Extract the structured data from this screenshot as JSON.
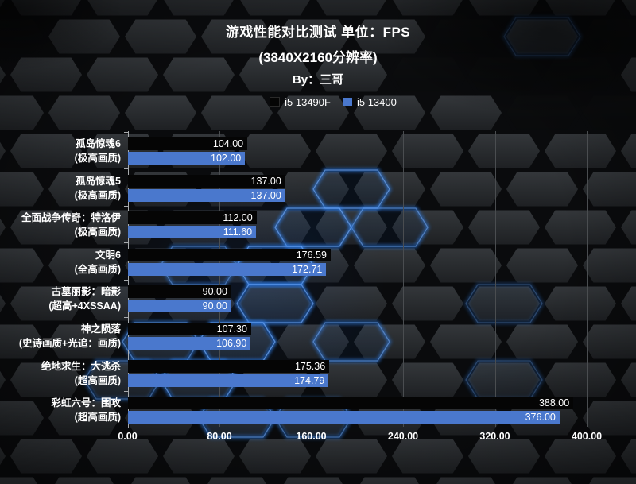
{
  "header": {
    "title": "游戏性能对比测试 单位：FPS",
    "subtitle": "(3840X2160分辨率)",
    "byline": "By：三哥"
  },
  "legend": {
    "items": [
      {
        "label": "i5 13490F",
        "color": "#050505"
      },
      {
        "label": "i5 13400",
        "color": "#4a78cd"
      }
    ]
  },
  "colors": {
    "bar_black": "#050505",
    "bar_blue": "#4a78cd",
    "gridline": "#4a4d50",
    "axis": "#a8abae",
    "text": "#ffffff",
    "glow_blue": "#2f7de4"
  },
  "chart_data": {
    "type": "bar",
    "orientation": "horizontal",
    "title": "游戏性能对比测试 单位：FPS",
    "subtitle": "(3840X2160分辨率)",
    "unit": "FPS",
    "xlim": [
      0,
      400
    ],
    "x_ticks": [
      0,
      80,
      160,
      240,
      320,
      400
    ],
    "grid": true,
    "legend_position": "top",
    "categories": [
      {
        "line1": "孤岛惊魂6",
        "line2": "(极高画质)"
      },
      {
        "line1": "孤岛惊魂5",
        "line2": "(极高画质)"
      },
      {
        "line1": "全面战争传奇：特洛伊",
        "line2": "(极高画质)"
      },
      {
        "line1": "文明6",
        "line2": "(全高画质)"
      },
      {
        "line1": "古墓丽影：暗影",
        "line2": "(超高+4XSSAA)"
      },
      {
        "line1": "神之陨落",
        "line2": "(史诗画质+光追：画质)"
      },
      {
        "line1": "绝地求生：大逃杀",
        "line2": "(超高画质)"
      },
      {
        "line1": "彩虹六号：围攻",
        "line2": "(超高画质)"
      }
    ],
    "series": [
      {
        "name": "i5 13490F",
        "color": "#050505",
        "values": [
          104.0,
          137.0,
          112.0,
          176.59,
          90.0,
          107.3,
          175.36,
          388.0
        ]
      },
      {
        "name": "i5 13400",
        "color": "#4a78cd",
        "values": [
          102.0,
          137.0,
          111.6,
          172.71,
          90.0,
          106.9,
          174.79,
          376.0
        ]
      }
    ],
    "value_label_decimals": 2
  }
}
